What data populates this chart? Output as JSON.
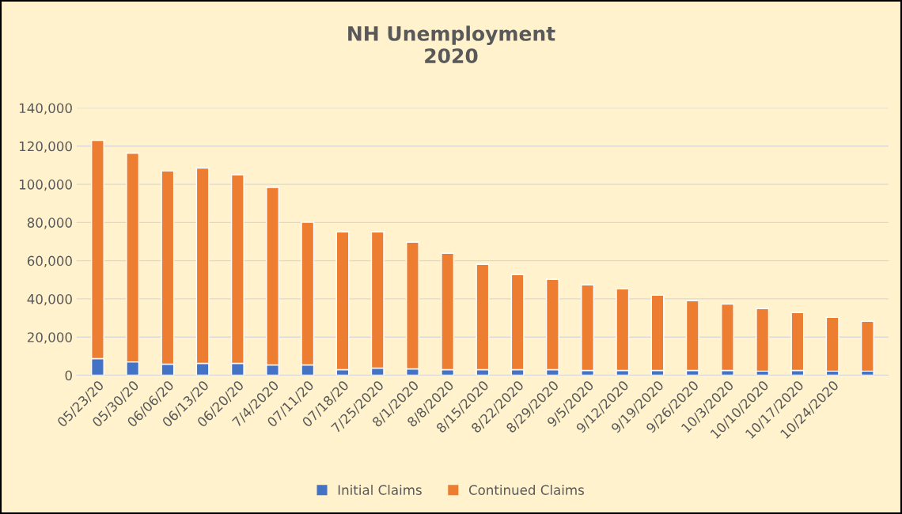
{
  "chart_data": {
    "type": "bar",
    "title": "NH Unemployment\n2020",
    "stacked": true,
    "grid": "y",
    "legend": "bottom",
    "categories": [
      "05/23/20",
      "05/30/20",
      "06/06/20",
      "06/13/20",
      "06/20/20",
      "7/4/2020",
      "07/11/20",
      "07/18/20",
      "7/25/2020",
      "8/1/2020",
      "8/8/2020",
      "8/15/2020",
      "8/22/2020",
      "8/29/2020",
      "9/5/2020",
      "9/12/2020",
      "9/19/2020",
      "9/26/2020",
      "10/3/2020",
      "10/10/2020",
      "10/17/2020",
      "10/24/2020",
      null
    ],
    "series": [
      {
        "name": "Initial Claims",
        "color": "#4472c4",
        "values": [
          8700,
          7000,
          5800,
          6200,
          6200,
          5400,
          5400,
          2900,
          3700,
          3300,
          2900,
          2900,
          2900,
          2900,
          2500,
          2500,
          2500,
          2500,
          2500,
          2100,
          2500,
          2100,
          2100
        ]
      },
      {
        "name": "Continued Claims",
        "color": "#ed7d31",
        "values": [
          114300,
          109300,
          101200,
          102300,
          98800,
          93000,
          74700,
          72200,
          71400,
          66400,
          61000,
          55200,
          49800,
          47300,
          44800,
          42700,
          39400,
          36500,
          34800,
          32800,
          30300,
          28200,
          26100
        ]
      }
    ],
    "ylim": [
      0,
      140000
    ],
    "yticks": [
      0,
      {
        "value": 20000,
        "label": "20,000"
      },
      {
        "value": 40000,
        "label": "40,000"
      },
      {
        "value": 60000,
        "label": "60,000"
      },
      {
        "value": 80000,
        "label": "80,000"
      },
      {
        "value": 100000,
        "label": "100,000"
      },
      {
        "value": 120000,
        "label": "120,000"
      },
      {
        "value": 140000,
        "label": "140,000"
      }
    ]
  }
}
